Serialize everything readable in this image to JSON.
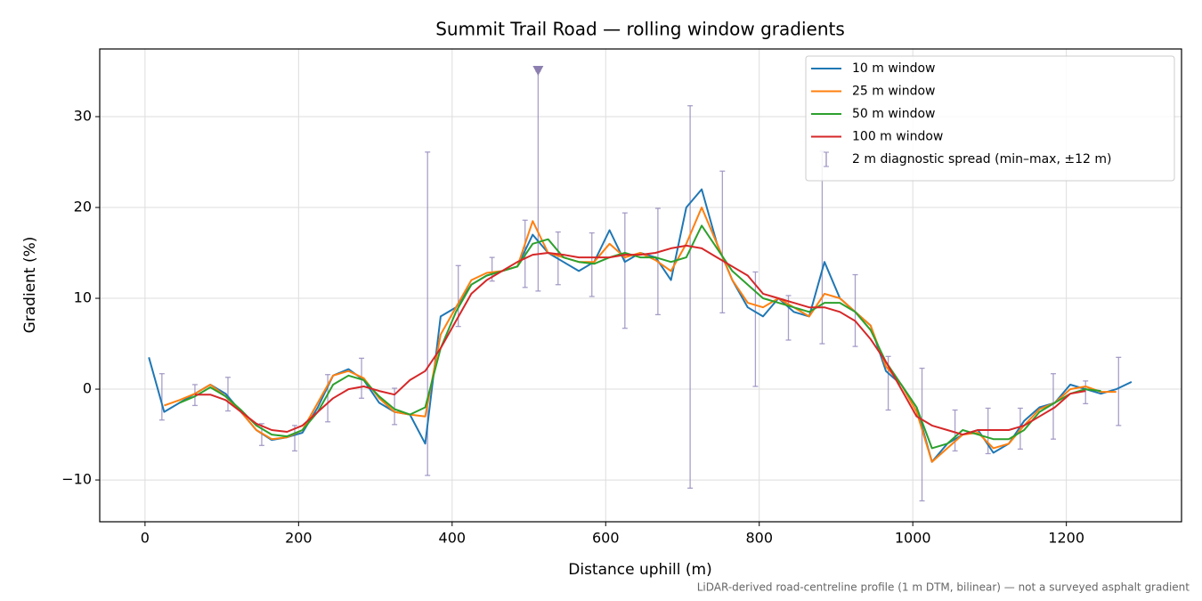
{
  "chart_data": {
    "type": "line",
    "title": "Summit Trail Road — rolling window gradients",
    "xlabel": "Distance uphill (m)",
    "ylabel": "Gradient (%)",
    "footnote": "LiDAR-derived road-centreline profile (1 m DTM, bilinear) — not a surveyed asphalt gradient",
    "xlim": [
      -59,
      1350
    ],
    "ylim": [
      -14.6,
      37.45
    ],
    "xticks": [
      0,
      200,
      400,
      600,
      800,
      1000,
      1200
    ],
    "yticks": [
      {
        "value": -10,
        "label": "−10"
      },
      0,
      10,
      20,
      30
    ],
    "grid": true,
    "legend": "upper right",
    "x": [
      5,
      25,
      45,
      65,
      85,
      105,
      125,
      145,
      165,
      185,
      205,
      225,
      245,
      265,
      285,
      305,
      325,
      345,
      365,
      385,
      405,
      425,
      445,
      465,
      485,
      505,
      525,
      545,
      565,
      585,
      605,
      625,
      645,
      665,
      685,
      705,
      725,
      745,
      765,
      785,
      805,
      825,
      845,
      865,
      885,
      905,
      925,
      945,
      965,
      985,
      1005,
      1025,
      1045,
      1065,
      1085,
      1105,
      1125,
      1145,
      1165,
      1185,
      1205,
      1225,
      1245,
      1265,
      1285
    ],
    "series": [
      {
        "name": "10 m window",
        "color": "#1f77b4",
        "values": [
          3.5,
          -2.5,
          -1.5,
          -0.5,
          0.5,
          -0.5,
          -2.5,
          -4.5,
          -5.6,
          -5.3,
          -4.8,
          -2,
          1.5,
          2.2,
          1,
          -1.5,
          -2.5,
          -2.8,
          -6,
          8,
          9,
          11.5,
          12.5,
          13,
          13.5,
          17,
          15,
          14,
          13,
          14,
          17.5,
          14,
          15,
          14.5,
          12,
          20,
          22,
          16,
          12,
          9,
          8,
          10,
          8.5,
          8,
          14,
          10,
          8.5,
          7,
          2,
          0.5,
          -2,
          -8,
          -6,
          -5,
          -4.5,
          -7,
          -6,
          -3.5,
          -2,
          -1.5,
          0.5,
          0,
          -0.5,
          0,
          0.8
        ]
      },
      {
        "name": "25 m window",
        "color": "#ff7f0e",
        "values": [
          null,
          -1.8,
          -1.2,
          -0.5,
          0.5,
          -0.8,
          -2.5,
          -4.5,
          -5.5,
          -5.3,
          -4.5,
          -1.5,
          1.5,
          2,
          1.2,
          -1,
          -2.5,
          -2.8,
          -3,
          6,
          9,
          12,
          12.8,
          13,
          13.5,
          18.5,
          15,
          14.5,
          14,
          14,
          16,
          14.5,
          15,
          14.2,
          13,
          16,
          20,
          16,
          12,
          9.5,
          9,
          10,
          9,
          8,
          10.5,
          10,
          8.5,
          7,
          2.5,
          0.5,
          -2.5,
          -8,
          -6.5,
          -5,
          -4.8,
          -6.5,
          -6,
          -4,
          -2.2,
          -1.5,
          0,
          0.3,
          -0.3,
          -0.3,
          null
        ]
      },
      {
        "name": "50 m window",
        "color": "#2ca02c",
        "values": [
          null,
          null,
          -1.5,
          -0.8,
          0.2,
          -0.8,
          -2.3,
          -4,
          -5,
          -5.2,
          -4.5,
          -2.5,
          0.5,
          1.5,
          1,
          -0.8,
          -2.2,
          -2.8,
          -2,
          4.5,
          8.5,
          11.5,
          12.5,
          13,
          13.5,
          16,
          16.5,
          14.5,
          14,
          13.8,
          14.5,
          15,
          14.5,
          14.5,
          14,
          14.5,
          18,
          15.5,
          13,
          11.5,
          10,
          9.5,
          9,
          8.5,
          9.5,
          9.5,
          8.5,
          6.5,
          3,
          0.5,
          -2,
          -6.5,
          -6,
          -4.5,
          -5,
          -5.5,
          -5.5,
          -4.5,
          -2.5,
          -1.5,
          -0.5,
          0,
          -0.2,
          null,
          null
        ]
      },
      {
        "name": "100 m window",
        "color": "#d62728",
        "values": [
          null,
          null,
          null,
          -0.6,
          -0.6,
          -1.2,
          -2.5,
          -3.8,
          -4.5,
          -4.7,
          -4,
          -2.5,
          -1,
          0,
          0.3,
          -0.2,
          -0.6,
          1,
          2,
          4.5,
          7.5,
          10.5,
          12,
          13,
          14,
          14.8,
          15,
          14.8,
          14.5,
          14.5,
          14.5,
          14.8,
          14.8,
          15,
          15.5,
          15.8,
          15.5,
          14.5,
          13.5,
          12.5,
          10.5,
          10,
          9.5,
          9,
          9,
          8.5,
          7.5,
          5.5,
          3,
          0,
          -3,
          -4,
          -4.5,
          -5,
          -4.5,
          -4.5,
          -4.5,
          -4,
          -3,
          -2,
          -0.5,
          -0.2,
          null,
          null,
          null
        ]
      }
    ],
    "errorbars": {
      "name": "2 m diagnostic spread (min–max, ±12 m)",
      "color": "#9a8fbf",
      "x": [
        22,
        65,
        108,
        152,
        195,
        238,
        282,
        325,
        368,
        408,
        452,
        495,
        512,
        538,
        582,
        625,
        668,
        710,
        752,
        795,
        838,
        882,
        925,
        968,
        1012,
        1055,
        1098,
        1140,
        1183,
        1225,
        1268
      ],
      "low": [
        -3.4,
        -1.8,
        -2.4,
        -6.2,
        -6.8,
        -3.6,
        -1,
        -3.9,
        -9.5,
        6.9,
        11.9,
        11.2,
        10.8,
        11.5,
        10.2,
        6.7,
        8.2,
        -10.9,
        8.4,
        0.3,
        5.4,
        5,
        4.7,
        -2.3,
        -12.3,
        -6.8,
        -7.1,
        -6.6,
        -5.5,
        -1.6,
        -4
      ],
      "high": [
        1.7,
        0.5,
        1.3,
        -3.8,
        -4,
        1.6,
        3.4,
        0.1,
        26.1,
        13.6,
        14.5,
        18.6,
        35,
        17.3,
        17.2,
        19.4,
        19.9,
        31.2,
        24,
        12.9,
        10.3,
        26.2,
        12.6,
        3.6,
        2.3,
        -2.3,
        -2.1,
        -2.1,
        1.7,
        0.9,
        3.5
      ]
    },
    "clip_marker": {
      "x": 512,
      "y": 35,
      "color": "#8c7fb0"
    }
  }
}
